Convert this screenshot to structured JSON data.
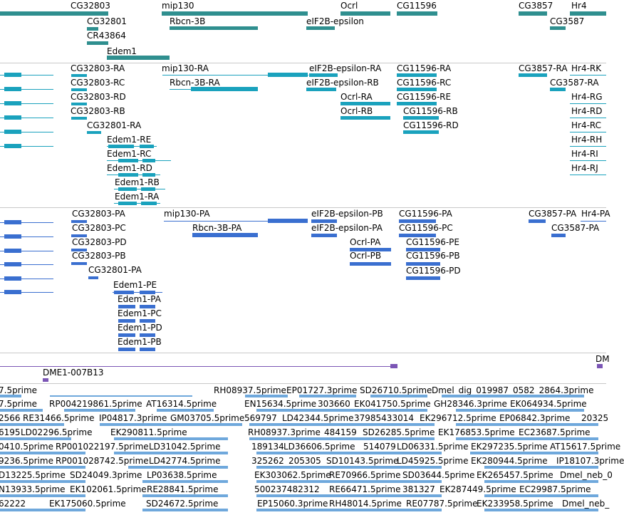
{
  "colors": {
    "genes": "#2f8f8f",
    "transcripts": "#1aa2bd",
    "proteins": "#3a6fd0",
    "clone": "#7b55b5",
    "ests": "#6fa8dc"
  },
  "genes": {
    "labels": [
      "CG32803",
      "CG32801",
      "CR43864",
      "Edem1",
      "mip130",
      "Rbcn-3B",
      "Ocrl",
      "eIF2B-epsilon",
      "CG11596",
      "CG3857",
      "Hr4",
      "CG3587"
    ]
  },
  "transcripts": {
    "labels": [
      "CG32803-RA",
      "CG32803-RC",
      "CG32803-RD",
      "CG32803-RB",
      "CG32801-RA",
      "Edem1-RE",
      "Edem1-RC",
      "Edem1-RD",
      "Edem1-RB",
      "Edem1-RA",
      "mip130-RA",
      "Rbcn-3B-RA",
      "eIF2B-epsilon-RA",
      "eIF2B-epsilon-RB",
      "Ocrl-RA",
      "Ocrl-RB",
      "CG11596-RA",
      "CG11596-RC",
      "CG11596-RE",
      "CG11596-RB",
      "CG11596-RD",
      "CG3857-RA",
      "Hr4-RK",
      "CG3587-RA",
      "Hr4-RG",
      "Hr4-RD",
      "Hr4-RC",
      "Hr4-RH",
      "Hr4-RI",
      "Hr4-RJ"
    ]
  },
  "proteins": {
    "labels": [
      "CG32803-PA",
      "CG32803-PC",
      "CG32803-PD",
      "CG32803-PB",
      "CG32801-PA",
      "Edem1-PE",
      "Edem1-PA",
      "Edem1-PC",
      "Edem1-PD",
      "Edem1-PB",
      "mip130-PA",
      "Rbcn-3B-PA",
      "eIF2B-epsilon-PB",
      "eIF2B-epsilon-PA",
      "Ocrl-PA",
      "Ocrl-PB",
      "CG11596-PA",
      "CG11596-PC",
      "CG11596-PE",
      "CG11596-PB",
      "CG11596-PD",
      "CG3857-PA",
      "Hr4-PA",
      "CG3587-PA"
    ]
  },
  "clones": {
    "labels": [
      "DME1-007B13",
      "DM"
    ]
  },
  "ests": {
    "row1": [
      "7.5prime",
      "RH08937.5prime",
      "EP01727.3prime",
      "SD26710.5prime",
      "Dmel_dig_019987_0582_2864.3prime"
    ],
    "row2": [
      "7.5prime",
      "RP004219861.5prime",
      "AT16314.5prime",
      "EN15634.5prime",
      "303660",
      "EK041750.5prime",
      "GH28346.3prime",
      "EK064934.5prime"
    ],
    "row3": [
      "2566",
      "RE31466.5prime",
      "IP04817.3prime",
      "GM03705.5prime",
      "569797",
      "LD42344.5prime",
      "37985433014",
      "EK296712.5prime",
      "EP06842.3prime",
      "20325"
    ],
    "row4": [
      "6195",
      "LD02296.5prime",
      "EK290811.5prime",
      "RH08937.3prime",
      "484159",
      "SD26285.5prime",
      "EK176853.5prime",
      "EC23687.5prime"
    ],
    "row5": [
      "0410.5prime",
      "RP001022197.5prime",
      "LD31042.5prime",
      "189134",
      "LD36606.5prime",
      "514079",
      "LD06331.5prime",
      "EK297235.5prime",
      "AT15617.5prime"
    ],
    "row6": [
      "9236.5prime",
      "RP001028742.5prime",
      "LD42774.5prime",
      "325262",
      "205305",
      "SD10143.5prime",
      "LD45925.5prime",
      "EK280944.5prime",
      "IP18107.3prime"
    ],
    "row7": [
      "D13225.5prime",
      "SD24049.3prime",
      "LP03638.5prime",
      "EK303062.5prime",
      "RE70966.5prime",
      "SD03644.5prime",
      "EK265457.5prime",
      "Dmel_neb_0"
    ],
    "row8": [
      "N13933.5prime",
      "EK102061.5prime",
      "RE28841.5prime",
      "500237482312",
      "RE66471.5prime",
      "381327",
      "EK287449.5prime",
      "EC29987.5prime"
    ],
    "row9": [
      "62222",
      "EK175060.5prime",
      "SD24672.5prime",
      "EP15060.3prime",
      "RH48014.5prime",
      "RE07787.5prime",
      "EK233958.5prime",
      "Dmel_neb_"
    ]
  }
}
